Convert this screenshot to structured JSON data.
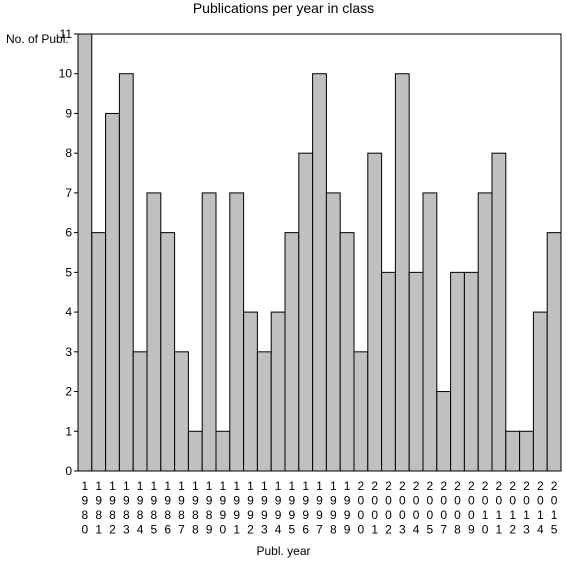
{
  "chart_data": {
    "type": "bar",
    "title": "Publications per year in class",
    "ylabel": "No. of Publ.",
    "xlabel": "Publ. year",
    "categories": [
      "1980",
      "1981",
      "1982",
      "1983",
      "1984",
      "1985",
      "1986",
      "1987",
      "1988",
      "1989",
      "1990",
      "1991",
      "1992",
      "1993",
      "1994",
      "1995",
      "1996",
      "1997",
      "1998",
      "1999",
      "2000",
      "2001",
      "2002",
      "2003",
      "2004",
      "2005",
      "2007",
      "2008",
      "2009",
      "2010",
      "2011",
      "2012",
      "2013",
      "2014",
      "2015"
    ],
    "values": [
      11,
      6,
      9,
      10,
      3,
      7,
      6,
      3,
      1,
      7,
      1,
      7,
      4,
      3,
      4,
      6,
      8,
      10,
      7,
      6,
      3,
      8,
      5,
      10,
      5,
      7,
      2,
      5,
      5,
      7,
      8,
      1,
      1,
      4,
      6
    ],
    "ylim": [
      0,
      11
    ],
    "yticks": [
      0,
      1,
      2,
      3,
      4,
      5,
      6,
      7,
      8,
      9,
      10,
      11
    ],
    "grid": false,
    "colors": {
      "bar_fill": "#c0c0c0",
      "bar_stroke": "#000000"
    }
  }
}
